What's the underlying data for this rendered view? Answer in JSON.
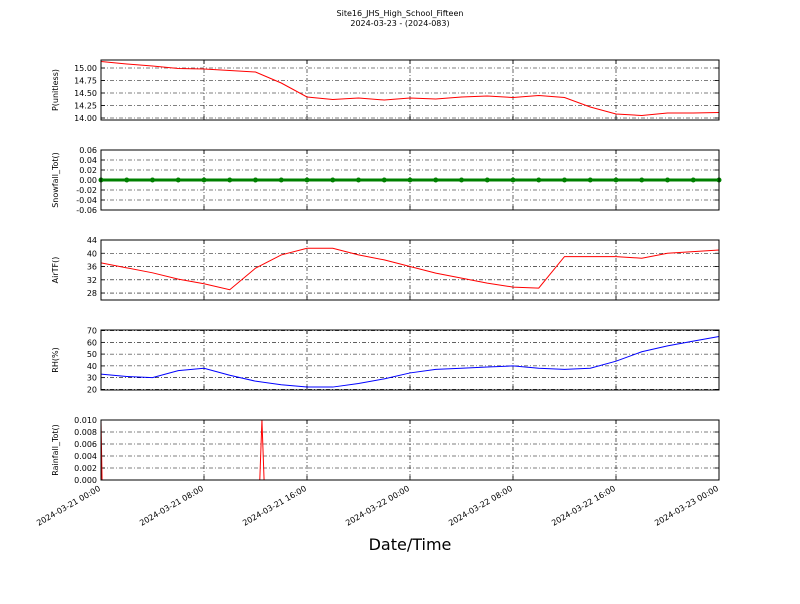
{
  "chart_data": [
    {
      "type": "line",
      "title": "Site16_JHS_High_School_Fifteen",
      "subtitle": "2024-03-23 - (2024-083)",
      "ylabel": "P(unitless)",
      "color": "#ff0000",
      "grid": true,
      "show_xticklabels": false,
      "xlim": [
        "2024-03-21 00:00",
        "2024-03-23 00:00"
      ],
      "xticks": [
        "2024-03-21 00:00",
        "2024-03-21 08:00",
        "2024-03-21 16:00",
        "2024-03-22 00:00",
        "2024-03-22 08:00",
        "2024-03-22 16:00",
        "2024-03-23 00:00"
      ],
      "ylim": [
        13.96,
        15.16
      ],
      "yticks": [
        {
          "value": 14,
          "label": "14.00"
        },
        {
          "value": 14.25,
          "label": "14.25"
        },
        {
          "value": 14.5,
          "label": "14.50"
        },
        {
          "value": 14.75,
          "label": "14.75"
        },
        {
          "value": 15,
          "label": "15.00"
        }
      ],
      "x": [
        "2024-03-21 00:00",
        "2024-03-21 02:00",
        "2024-03-21 04:00",
        "2024-03-21 06:00",
        "2024-03-21 08:00",
        "2024-03-21 10:00",
        "2024-03-21 12:00",
        "2024-03-21 14:00",
        "2024-03-21 16:00",
        "2024-03-21 18:00",
        "2024-03-21 20:00",
        "2024-03-21 22:00",
        "2024-03-22 00:00",
        "2024-03-22 02:00",
        "2024-03-22 04:00",
        "2024-03-22 06:00",
        "2024-03-22 08:00",
        "2024-03-22 10:00",
        "2024-03-22 12:00",
        "2024-03-22 14:00",
        "2024-03-22 16:00",
        "2024-03-22 18:00",
        "2024-03-22 20:00",
        "2024-03-22 22:00",
        "2024-03-23 00:00"
      ],
      "values": [
        15.13,
        15.08,
        15.04,
        14.99,
        14.98,
        14.95,
        14.92,
        14.7,
        14.42,
        14.37,
        14.4,
        14.36,
        14.4,
        14.38,
        14.42,
        14.44,
        14.41,
        14.45,
        14.41,
        14.22,
        14.08,
        14.05,
        14.1,
        14.1,
        14.11
      ]
    },
    {
      "type": "line",
      "ylabel": "Snowfall_Tot()",
      "color": "#008000",
      "marker": true,
      "grid": true,
      "show_xticklabels": false,
      "xlim": [
        "2024-03-21 00:00",
        "2024-03-23 00:00"
      ],
      "xticks": [
        "2024-03-21 00:00",
        "2024-03-21 08:00",
        "2024-03-21 16:00",
        "2024-03-22 00:00",
        "2024-03-22 08:00",
        "2024-03-22 16:00",
        "2024-03-23 00:00"
      ],
      "ylim": [
        -0.06,
        0.06
      ],
      "yticks": [
        -0.06,
        -0.04,
        -0.02,
        {
          "value": 0,
          "label": "0.00"
        },
        0.02,
        0.04,
        0.06
      ],
      "x": [
        "2024-03-21 00:00",
        "2024-03-21 02:00",
        "2024-03-21 04:00",
        "2024-03-21 06:00",
        "2024-03-21 08:00",
        "2024-03-21 10:00",
        "2024-03-21 12:00",
        "2024-03-21 14:00",
        "2024-03-21 16:00",
        "2024-03-21 18:00",
        "2024-03-21 20:00",
        "2024-03-21 22:00",
        "2024-03-22 00:00",
        "2024-03-22 02:00",
        "2024-03-22 04:00",
        "2024-03-22 06:00",
        "2024-03-22 08:00",
        "2024-03-22 10:00",
        "2024-03-22 12:00",
        "2024-03-22 14:00",
        "2024-03-22 16:00",
        "2024-03-22 18:00",
        "2024-03-22 20:00",
        "2024-03-22 22:00",
        "2024-03-23 00:00"
      ],
      "values": [
        0,
        0,
        0,
        0,
        0,
        0,
        0,
        0,
        0,
        0,
        0,
        0,
        0,
        0,
        0,
        0,
        0,
        0,
        0,
        0,
        0,
        0,
        0,
        0,
        0
      ]
    },
    {
      "type": "line",
      "ylabel": "AirTF()",
      "color": "#ff0000",
      "grid": true,
      "show_xticklabels": false,
      "xlim": [
        "2024-03-21 00:00",
        "2024-03-23 00:00"
      ],
      "xticks": [
        "2024-03-21 00:00",
        "2024-03-21 08:00",
        "2024-03-21 16:00",
        "2024-03-22 00:00",
        "2024-03-22 08:00",
        "2024-03-22 16:00",
        "2024-03-23 00:00"
      ],
      "ylim": [
        25.9,
        44
      ],
      "yticks": [
        28,
        32,
        36,
        40,
        44
      ],
      "x": [
        "2024-03-21 00:00",
        "2024-03-21 02:00",
        "2024-03-21 04:00",
        "2024-03-21 06:00",
        "2024-03-21 08:00",
        "2024-03-21 10:00",
        "2024-03-21 12:00",
        "2024-03-21 14:00",
        "2024-03-21 16:00",
        "2024-03-21 18:00",
        "2024-03-21 20:00",
        "2024-03-21 22:00",
        "2024-03-22 00:00",
        "2024-03-22 02:00",
        "2024-03-22 04:00",
        "2024-03-22 06:00",
        "2024-03-22 08:00",
        "2024-03-22 10:00",
        "2024-03-22 12:00",
        "2024-03-22 14:00",
        "2024-03-22 16:00",
        "2024-03-22 18:00",
        "2024-03-22 20:00",
        "2024-03-22 22:00",
        "2024-03-23 00:00"
      ],
      "values": [
        37.1,
        35.6,
        34.1,
        32.2,
        30.8,
        29,
        35.5,
        39.5,
        41.5,
        41.5,
        39.5,
        38,
        36,
        34,
        32.5,
        31,
        29.8,
        29.5,
        39,
        39,
        39,
        38.5,
        40,
        40.5,
        41
      ]
    },
    {
      "type": "line",
      "ylabel": "RH(%)",
      "color": "#0000ff",
      "grid": true,
      "show_xticklabels": false,
      "xlim": [
        "2024-03-21 00:00",
        "2024-03-23 00:00"
      ],
      "xticks": [
        "2024-03-21 00:00",
        "2024-03-21 08:00",
        "2024-03-21 16:00",
        "2024-03-22 00:00",
        "2024-03-22 08:00",
        "2024-03-22 16:00",
        "2024-03-23 00:00"
      ],
      "ylim": [
        19.5,
        70.5
      ],
      "yticks": [
        20,
        30,
        40,
        50,
        60,
        70
      ],
      "x": [
        "2024-03-21 00:00",
        "2024-03-21 02:00",
        "2024-03-21 04:00",
        "2024-03-21 06:00",
        "2024-03-21 08:00",
        "2024-03-21 10:00",
        "2024-03-21 12:00",
        "2024-03-21 14:00",
        "2024-03-21 16:00",
        "2024-03-21 18:00",
        "2024-03-21 20:00",
        "2024-03-21 22:00",
        "2024-03-22 00:00",
        "2024-03-22 02:00",
        "2024-03-22 04:00",
        "2024-03-22 06:00",
        "2024-03-22 08:00",
        "2024-03-22 10:00",
        "2024-03-22 12:00",
        "2024-03-22 14:00",
        "2024-03-22 16:00",
        "2024-03-22 18:00",
        "2024-03-22 20:00",
        "2024-03-22 22:00",
        "2024-03-23 00:00"
      ],
      "values": [
        33,
        31,
        30,
        36,
        38,
        32,
        27,
        24,
        22,
        22,
        25,
        29,
        34,
        37,
        38,
        39,
        40,
        38,
        37,
        38,
        44,
        52,
        57,
        61,
        65
      ]
    },
    {
      "type": "line",
      "ylabel": "Rainfall_Tot()",
      "xlabel": "Date/Time",
      "color": "#ff0000",
      "grid": true,
      "show_xticklabels": true,
      "xlim": [
        "2024-03-21 00:00",
        "2024-03-23 00:00"
      ],
      "xticks": [
        "2024-03-21 00:00",
        "2024-03-21 08:00",
        "2024-03-21 16:00",
        "2024-03-22 00:00",
        "2024-03-22 08:00",
        "2024-03-22 16:00",
        "2024-03-23 00:00"
      ],
      "ylim": [
        0,
        0.01
      ],
      "yticks": [
        {
          "value": 0,
          "label": "0.000"
        },
        {
          "value": 0.002,
          "label": "0.002"
        },
        {
          "value": 0.004,
          "label": "0.004"
        },
        {
          "value": 0.006,
          "label": "0.006"
        },
        {
          "value": 0.008,
          "label": "0.008"
        },
        {
          "value": 0.01,
          "label": "0.010"
        }
      ],
      "x": [
        "2024-03-21 00:00",
        "2024-03-21 00:05",
        "2024-03-21 12:20",
        "2024-03-21 12:30",
        "2024-03-21 12:40",
        "2024-03-23 00:00"
      ],
      "values": [
        0.01,
        0,
        0,
        0.01,
        0,
        0
      ]
    }
  ]
}
